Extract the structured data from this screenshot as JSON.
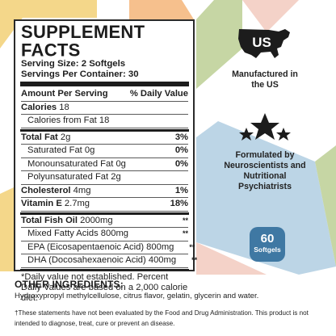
{
  "colors": {
    "badge": "#3f78a3",
    "bg_yellow": "#f4d78a",
    "bg_green": "#c6d6a4",
    "bg_blue": "#bcd5e6",
    "bg_pink": "#f4d2c8",
    "bg_orange": "#f6c08d"
  },
  "facts": {
    "title": "SUPPLEMENT FACTS",
    "serving_size": "Serving Size: 2 Softgels",
    "servings_per_container": "Servings Per Container: 30",
    "header_left": "Amount Per Serving",
    "header_right": "% Daily Value",
    "calories_label": "Calories",
    "calories_value": "18",
    "calories_fat": "Calories from Fat 18",
    "total_fat_label": "Total Fat",
    "total_fat_amount": "2g",
    "total_fat_dv": "3%",
    "sat_fat": "Saturated Fat 0g",
    "sat_fat_dv": "0%",
    "mono_fat": "Monounsaturated Fat 0g",
    "mono_fat_dv": "0%",
    "poly_fat": "Polyunsaturated Fat 2g",
    "chol_label": "Cholesterol",
    "chol_amount": "4mg",
    "chol_dv": "1%",
    "vite_label": "Vitamin E",
    "vite_amount": "2.7mg",
    "vite_dv": "18%",
    "fish_label": "Total Fish Oil",
    "fish_amount": "2000mg",
    "fish_dv": "**",
    "mixed": "Mixed Fatty Acids 800mg",
    "mixed_dv": "**",
    "epa": "EPA (Eicosapentaenoic Acid) 800mg",
    "epa_dv": "**",
    "dha": "DHA (Docosahexaenoic Acid) 400mg",
    "dha_dv": "**",
    "footnote": "*Daily value not established. Percent Daily Values are based on a 2,000 calorie diet."
  },
  "badges": {
    "us_icon_text": "US",
    "made_in_us": "Manufactured in the US",
    "formulated": "Formulated by Neuroscientists and Nutritional Psychiatrists",
    "count_number": "60",
    "count_label": "Softgels"
  },
  "ingredients": {
    "title": "OTHER INGREDIENTS:",
    "text": "Hydroxypropyl methylcellulose, citrus flavor, gelatin, glycerin and water."
  },
  "disclaimer": "†These statements have not been evaluated by the Food and Drug Administration. This product is not intended to diagnose, treat, cure or prevent an disease."
}
